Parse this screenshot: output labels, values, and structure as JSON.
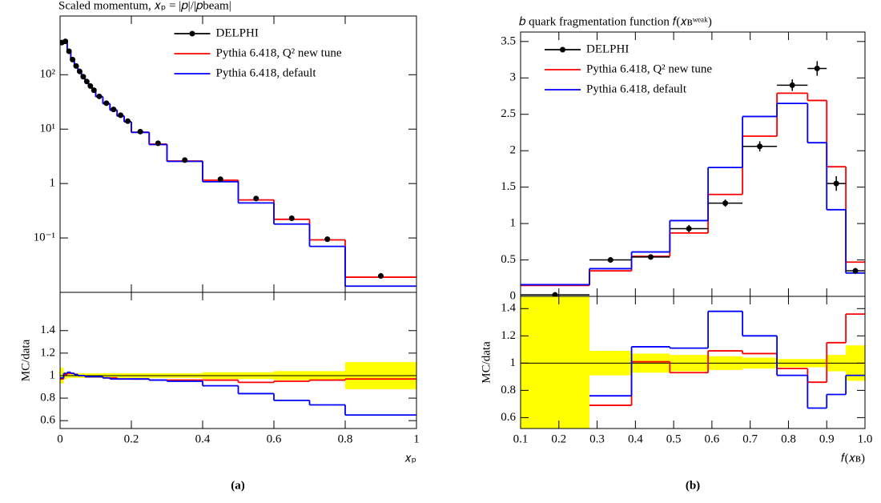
{
  "chart_data": [
    {
      "type": "histogram",
      "title": "Scaled momentum, 𝑥ₚ = |𝑝|/|𝑝beam|",
      "caption": "(a)",
      "log": true,
      "legend": "upper center",
      "bins": [
        0,
        0.01,
        0.02,
        0.03,
        0.04,
        0.05,
        0.06,
        0.07,
        0.08,
        0.09,
        0.1,
        0.12,
        0.14,
        0.16,
        0.18,
        0.2,
        0.25,
        0.3,
        0.4,
        0.5,
        0.6,
        0.7,
        0.8,
        1.0
      ],
      "ylim": [
        0.01,
        1200
      ],
      "yticks": [
        {
          "value": 0.1,
          "label": "10⁻¹"
        },
        1,
        {
          "value": 10,
          "label": "10¹"
        },
        {
          "value": 100,
          "label": "10²"
        }
      ],
      "series": [
        {
          "name": "DELPHI",
          "color": "#000000",
          "style": "points",
          "values": [
            390,
            410,
            270,
            190,
            145,
            115,
            92,
            75,
            62,
            52,
            40,
            30,
            23,
            18,
            14,
            9,
            5.5,
            2.7,
            1.2,
            0.53,
            0.23,
            0.095,
            0.02
          ]
        },
        {
          "name": "Pythia 6.418, Q² new tune",
          "color": "#ff0000",
          "style": "step",
          "values": [
            380,
            415,
            275,
            195,
            145,
            114,
            91,
            74,
            61,
            51,
            39.5,
            29.5,
            22.5,
            17.5,
            13.7,
            8.8,
            5.3,
            2.6,
            1.15,
            0.5,
            0.22,
            0.092,
            0.019
          ]
        },
        {
          "name": "Pythia 6.418, default",
          "color": "#0000ff",
          "style": "step",
          "values": [
            385,
            420,
            278,
            196,
            146,
            115,
            91,
            74,
            61,
            51,
            39.5,
            29.3,
            22.3,
            17.4,
            13.6,
            8.7,
            5.2,
            2.55,
            1.08,
            0.44,
            0.18,
            0.07,
            0.013
          ]
        }
      ]
    },
    {
      "type": "ratio",
      "ylabel": "MC/data",
      "xlabel": "𝑥ₚ",
      "xlim": [
        0,
        1
      ],
      "xticks": [
        0,
        0.2,
        0.4,
        0.6,
        0.8,
        1
      ],
      "ylim": [
        0.53,
        1.74
      ],
      "yticks": [
        0.6,
        0.8,
        1,
        1.2,
        1.4
      ],
      "band": {
        "color": "#ffff00",
        "values": [
          0.07,
          0.03,
          0.02,
          0.02,
          0.02,
          0.02,
          0.02,
          0.02,
          0.02,
          0.02,
          0.02,
          0.02,
          0.02,
          0.02,
          0.02,
          0.02,
          0.02,
          0.02,
          0.03,
          0.03,
          0.04,
          0.04,
          0.12
        ]
      },
      "series": [
        {
          "color": "#ff0000",
          "values": [
            0.97,
            1.01,
            1.02,
            1.02,
            1.01,
            1.0,
            1.0,
            0.99,
            0.99,
            0.99,
            0.99,
            0.98,
            0.98,
            0.97,
            0.97,
            0.97,
            0.96,
            0.96,
            0.96,
            0.94,
            0.95,
            0.96,
            0.97
          ]
        },
        {
          "color": "#0000ff",
          "values": [
            0.98,
            1.02,
            1.03,
            1.02,
            1.01,
            1.0,
            1.0,
            0.99,
            0.99,
            0.99,
            0.99,
            0.98,
            0.97,
            0.97,
            0.97,
            0.97,
            0.96,
            0.95,
            0.91,
            0.84,
            0.78,
            0.74,
            0.65
          ]
        }
      ]
    },
    {
      "type": "histogram",
      "title": "𝑏 quark fragmentation function 𝑓(𝑥ʙʷᵉᵃᵏ)",
      "caption": "(b)",
      "log": false,
      "legend": "upper left",
      "bins": [
        0.1,
        0.28,
        0.39,
        0.49,
        0.59,
        0.68,
        0.77,
        0.85,
        0.9,
        0.95,
        1.0
      ],
      "ylim": [
        0,
        3.63
      ],
      "yticks": [
        0,
        0.5,
        1,
        1.5,
        2,
        2.5,
        3,
        3.5
      ],
      "series": [
        {
          "name": "DELPHI",
          "color": "#000000",
          "style": "points",
          "values": [
            0.02,
            0.5,
            0.54,
            0.93,
            1.28,
            2.06,
            2.9,
            3.13,
            1.55,
            0.35
          ],
          "errors": [
            0.02,
            0.03,
            0.03,
            0.05,
            0.05,
            0.07,
            0.08,
            0.1,
            0.1,
            0.04
          ]
        },
        {
          "name": "Pythia 6.418, Q² new tune",
          "color": "#ff0000",
          "style": "step",
          "values": [
            0.15,
            0.35,
            0.55,
            0.87,
            1.4,
            2.2,
            2.79,
            2.69,
            1.78,
            0.47
          ]
        },
        {
          "name": "Pythia 6.418, default",
          "color": "#0000ff",
          "style": "step",
          "values": [
            0.16,
            0.38,
            0.61,
            1.04,
            1.77,
            2.47,
            2.65,
            2.11,
            1.19,
            0.32
          ]
        }
      ]
    },
    {
      "type": "ratio",
      "ylabel": "MC/data",
      "xlabel": "𝑓(𝑥ʙ)",
      "xlim": [
        0.1,
        1.0
      ],
      "xticks": [
        0.1,
        0.2,
        0.3,
        0.4,
        0.5,
        0.6,
        0.7,
        0.8,
        0.9,
        {
          "value": 1,
          "label": "1.0"
        }
      ],
      "ylim": [
        0.52,
        1.49
      ],
      "yticks": [
        0.6,
        0.8,
        1,
        1.2,
        1.4
      ],
      "band": {
        "color": "#ffff00",
        "values": [
          1.0,
          0.09,
          0.07,
          0.06,
          0.05,
          0.04,
          0.03,
          0.03,
          0.06,
          0.13
        ]
      },
      "series": [
        {
          "color": "#ff0000",
          "values": [
            null,
            0.69,
            1.01,
            0.93,
            1.09,
            1.07,
            0.96,
            0.86,
            1.15,
            1.36
          ]
        },
        {
          "color": "#0000ff",
          "values": [
            null,
            0.76,
            1.12,
            1.11,
            1.38,
            1.2,
            0.91,
            0.67,
            0.77,
            0.91
          ]
        }
      ]
    }
  ]
}
